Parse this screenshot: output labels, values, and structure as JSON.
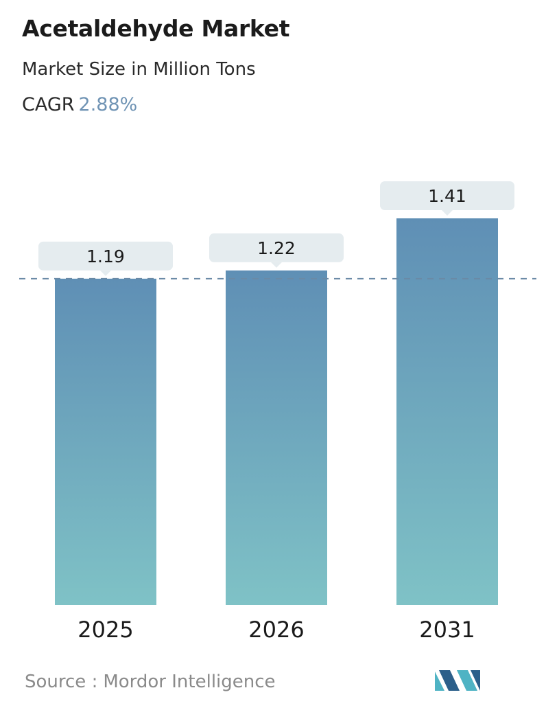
{
  "header": {
    "title": "Acetaldehyde Market",
    "subtitle": "Market Size in Million Tons",
    "cagr_label": "CAGR",
    "cagr_value": "2.88%"
  },
  "colors": {
    "bar_top": "#5f8fb5",
    "bar_bottom": "#7fc2c6",
    "label_bg": "#e5ecef",
    "dashed_line": "#6a8aa6",
    "cagr_value": "#6f93b4",
    "logo_dark": "#2b5f8a",
    "logo_light": "#4fb3c4"
  },
  "chart_data": {
    "type": "bar",
    "categories": [
      "2025",
      "2026",
      "2031"
    ],
    "values": [
      1.19,
      1.22,
      1.41
    ],
    "value_labels": [
      "1.19",
      "1.22",
      "1.41"
    ],
    "title": "Acetaldehyde Market",
    "xlabel": "",
    "ylabel": "",
    "ylim": [
      0,
      1.41
    ],
    "reference_line": 1.19,
    "grid": false,
    "legend": "none"
  },
  "footer": {
    "source_label": "Source :",
    "source_name": "Mordor Intelligence",
    "logo": "mordor-intelligence-logo"
  }
}
